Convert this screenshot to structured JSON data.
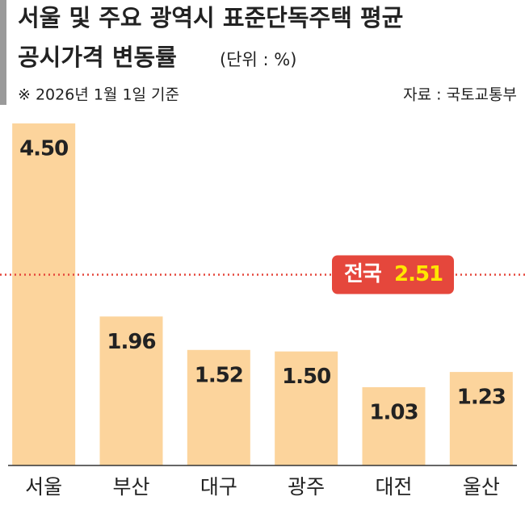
{
  "chart_data": {
    "type": "bar",
    "title": [
      "서울 및 주요 광역시 표준단독주택 평균",
      "공시가격 변동률"
    ],
    "unit": "(단위 : %)",
    "note": "※ 2026년 1월 1일 기준",
    "source": "자료 : 국토교통부",
    "categories": [
      "서울",
      "부산",
      "대구",
      "광주",
      "대전",
      "울산"
    ],
    "values": [
      4.5,
      1.96,
      1.52,
      1.5,
      1.03,
      1.23
    ],
    "value_labels": [
      "4.50",
      "1.96",
      "1.52",
      "1.50",
      "1.03",
      "1.23"
    ],
    "color": "#fcd49c",
    "reference": {
      "name": "전국",
      "value": 2.51,
      "color": "#e5473c"
    }
  }
}
